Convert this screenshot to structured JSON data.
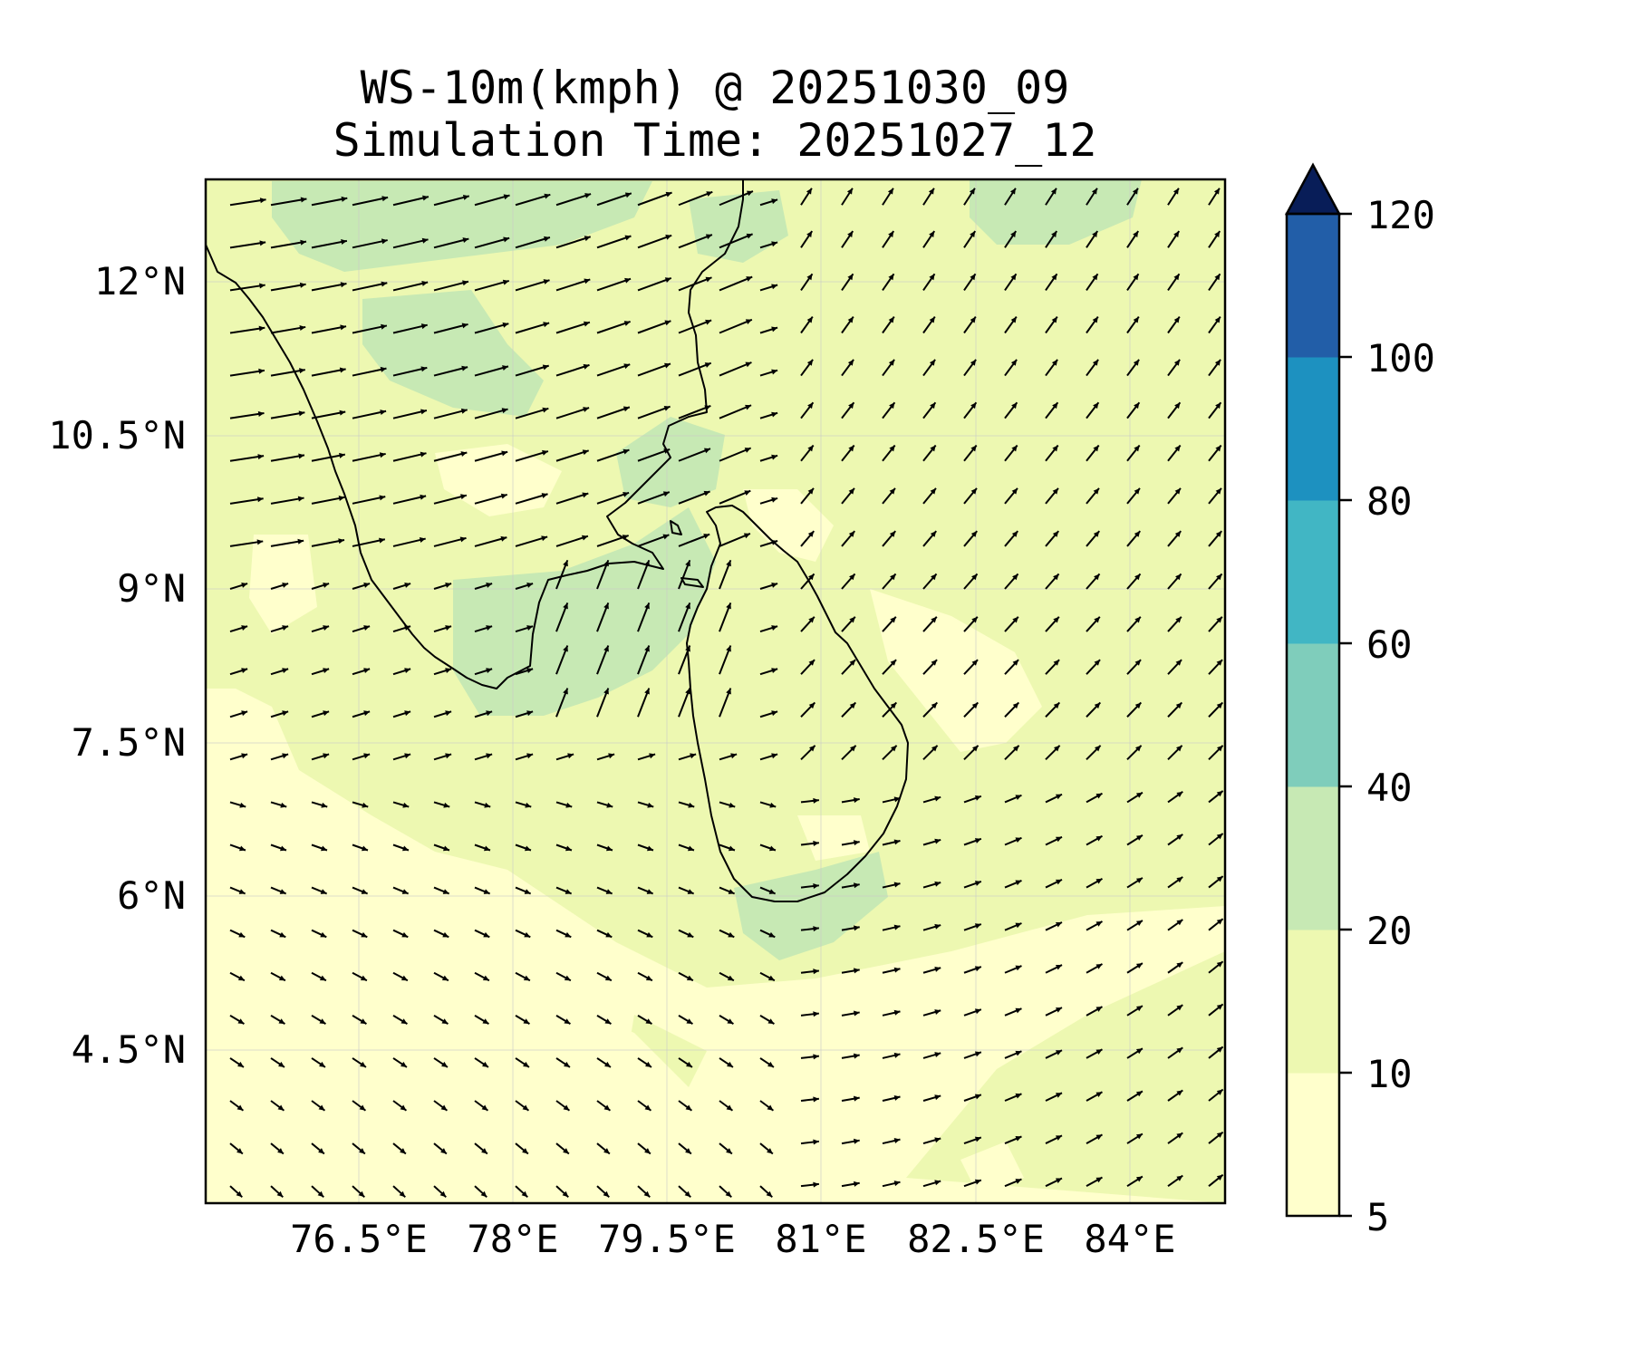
{
  "title_line1": "WS-10m(kmph) @ 20251030_09",
  "title_line2": "Simulation Time: 20251027_12",
  "map": {
    "lon_range": [
      75.0,
      84.9
    ],
    "lat_range": [
      3.0,
      13.0
    ],
    "x_ticks": [
      "76.5°E",
      "78°E",
      "79.5°E",
      "81°E",
      "82.5°E",
      "84°E"
    ],
    "x_tick_values": [
      76.5,
      78.0,
      79.5,
      81.0,
      82.5,
      84.0
    ],
    "y_ticks": [
      "12°N",
      "10.5°N",
      "9°N",
      "7.5°N",
      "6°N",
      "4.5°N"
    ],
    "y_tick_values": [
      12.0,
      10.5,
      9.0,
      7.5,
      6.0,
      4.5
    ],
    "background_color": "#ffffcc",
    "gridlines": true
  },
  "colorbar": {
    "levels": [
      "5",
      "10",
      "20",
      "40",
      "60",
      "80",
      "100",
      "120"
    ],
    "colors": [
      "#ffffcc",
      "#edf8b1",
      "#c7e9b4",
      "#7fcdbb",
      "#41b6c4",
      "#1d91c0",
      "#225ea8",
      "#0c2c84"
    ],
    "extend_color": "#081d58",
    "extend": "max"
  }
}
